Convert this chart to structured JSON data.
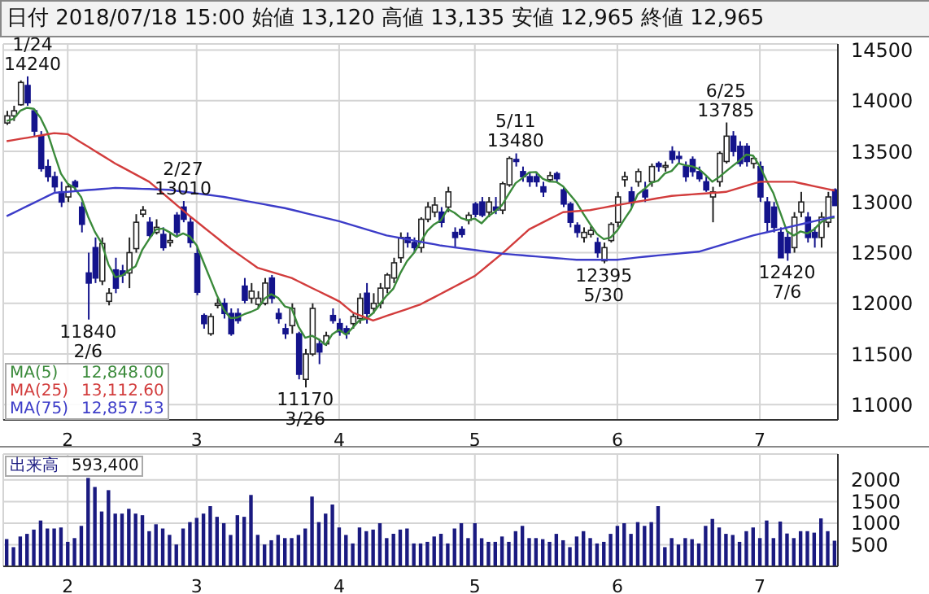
{
  "chart_data": [
    {
      "type": "candlestick",
      "title": "日付 2018/07/18 15:00 始値 13,120 高値 13,135 安値 12,965 終値 12,965",
      "categories": [
        null,
        null,
        null,
        null,
        null,
        null,
        null,
        null,
        null,
        "2",
        null,
        null,
        null,
        null,
        null,
        null,
        null,
        null,
        null,
        null,
        null,
        null,
        null,
        null,
        null,
        null,
        null,
        null,
        "3",
        null,
        null,
        null,
        null,
        null,
        null,
        null,
        null,
        null,
        null,
        null,
        null,
        null,
        null,
        null,
        null,
        null,
        null,
        null,
        null,
        "4",
        null,
        null,
        null,
        null,
        null,
        null,
        null,
        null,
        null,
        null,
        null,
        null,
        null,
        null,
        null,
        null,
        null,
        null,
        null,
        "5",
        null,
        null,
        null,
        null,
        null,
        null,
        null,
        null,
        null,
        null,
        null,
        null,
        null,
        null,
        null,
        null,
        null,
        null,
        null,
        null,
        "6",
        null,
        null,
        null,
        null,
        null,
        null,
        null,
        null,
        null,
        null,
        null,
        null,
        null,
        null,
        null,
        null,
        null,
        null,
        null,
        null,
        "7",
        null,
        null,
        null,
        null,
        null,
        null,
        null,
        null,
        null,
        null,
        null
      ],
      "series": [
        {
          "type": "candlestick",
          "colors": [
            "#ffffff",
            "#ffffff",
            "#ffffff",
            "#14148c",
            "#14148c",
            "#14148c",
            "#14148c",
            "#14148c",
            "#14148c",
            "#ffffff",
            "#14148c",
            "#14148c",
            "#14148c",
            "#14148c",
            "#ffffff",
            "#ffffff",
            "#14148c",
            "#14148c",
            "#ffffff",
            "#ffffff",
            "#ffffff",
            "#14148c",
            "#ffffff",
            "#14148c",
            "#ffffff",
            "#14148c",
            "#14148c",
            "#14148c",
            "#14148c",
            "#14148c",
            "#ffffff",
            "#ffffff",
            "#14148c",
            "#14148c",
            "#14148c",
            "#14148c",
            "#ffffff",
            "#ffffff",
            "#ffffff",
            "#14148c",
            "#14148c",
            "#14148c",
            "#ffffff",
            "#14148c",
            "#ffffff",
            "#ffffff",
            "#14148c",
            "#ffffff",
            "#14148c",
            "#14148c",
            "#14148c",
            "#ffffff",
            "#ffffff",
            "#14148c",
            "#ffffff",
            "#ffffff",
            "#ffffff",
            "#ffffff",
            "#ffffff",
            "#14148c",
            "#14148c",
            "#ffffff",
            "#ffffff",
            "#ffffff",
            "#14148c",
            "#ffffff",
            "#14148c",
            "#14148c",
            "#ffffff",
            "#14148c",
            "#14148c",
            "#ffffff",
            "#14148c",
            "#ffffff",
            "#ffffff",
            "#14148c",
            "#14148c",
            "#14148c",
            "#14148c",
            "#14148c",
            "#ffffff",
            "#14148c",
            "#14148c",
            "#14148c",
            "#14148c",
            "#ffffff",
            "#ffffff",
            "#14148c",
            "#ffffff",
            "#ffffff",
            "#ffffff",
            "#ffffff",
            "#14148c",
            "#ffffff",
            "#14148c",
            "#ffffff",
            "#14148c",
            "#ffffff",
            "#14148c",
            "#14148c",
            "#14148c",
            "#14148c",
            "#14148c",
            "#14148c",
            "#ffffff",
            "#ffffff",
            "#ffffff",
            "#14148c",
            "#14148c",
            "#14148c",
            "#ffffff",
            "#14148c",
            "#14148c",
            "#14148c",
            "#14148c",
            "#14148c",
            "#ffffff",
            "#ffffff",
            "#14148c",
            "#14148c",
            "#ffffff",
            "#ffffff",
            "#14148c"
          ],
          "ohlc": [
            [
              13780,
              13900,
              13760,
              13850
            ],
            [
              13850,
              13950,
              13800,
              13900
            ],
            [
              13960,
              14200,
              13950,
              14180
            ],
            [
              14150,
              14240,
              13950,
              13980
            ],
            [
              13900,
              13920,
              13650,
              13700
            ],
            [
              13650,
              13700,
              13300,
              13330
            ],
            [
              13350,
              13420,
              13200,
              13250
            ],
            [
              13250,
              13300,
              13100,
              13150
            ],
            [
              13100,
              13200,
              12950,
              13000
            ],
            [
              13050,
              13180,
              13000,
              13150
            ],
            [
              13200,
              13220,
              13100,
              13150
            ],
            [
              12950,
              13000,
              12700,
              12780
            ],
            [
              12300,
              12500,
              11840,
              12200
            ],
            [
              12550,
              12650,
              12200,
              12250
            ],
            [
              12220,
              12650,
              12180,
              12590
            ],
            [
              12020,
              12150,
              11980,
              12100
            ],
            [
              12330,
              12450,
              12100,
              12150
            ],
            [
              12320,
              12380,
              12200,
              12280
            ],
            [
              12300,
              12650,
              12150,
              12500
            ],
            [
              12540,
              12880,
              12500,
              12800
            ],
            [
              12880,
              12960,
              12850,
              12920
            ],
            [
              12800,
              12850,
              12650,
              12670
            ],
            [
              12700,
              12830,
              12680,
              12750
            ],
            [
              12680,
              12750,
              12520,
              12550
            ],
            [
              12600,
              12700,
              12560,
              12620
            ],
            [
              12870,
              12900,
              12650,
              12700
            ],
            [
              12950,
              13010,
              12800,
              12830
            ],
            [
              12800,
              12850,
              12550,
              12600
            ],
            [
              12490,
              12550,
              12080,
              12110
            ],
            [
              11880,
              11900,
              11750,
              11800
            ],
            [
              11700,
              11900,
              11680,
              11870
            ],
            [
              11980,
              12050,
              11950,
              12000
            ],
            [
              12000,
              12050,
              11850,
              11900
            ],
            [
              11900,
              11950,
              11680,
              11700
            ],
            [
              11900,
              11950,
              11800,
              11830
            ],
            [
              12170,
              12250,
              12000,
              12030
            ],
            [
              12050,
              12200,
              12000,
              12120
            ],
            [
              11990,
              12120,
              11950,
              12050
            ],
            [
              12000,
              12250,
              11980,
              12200
            ],
            [
              12250,
              12280,
              12000,
              12050
            ],
            [
              11900,
              11950,
              11800,
              11850
            ],
            [
              11750,
              11800,
              11650,
              11700
            ],
            [
              11780,
              12000,
              11700,
              11950
            ],
            [
              11700,
              11720,
              11250,
              11300
            ],
            [
              11250,
              11550,
              11170,
              11500
            ],
            [
              11500,
              12000,
              11480,
              11950
            ],
            [
              11600,
              11650,
              11400,
              11520
            ],
            [
              11600,
              11720,
              11580,
              11680
            ],
            [
              11880,
              11950,
              11800,
              11830
            ],
            [
              11800,
              11850,
              11680,
              11720
            ],
            [
              11750,
              11780,
              11650,
              11700
            ],
            [
              11800,
              11900,
              11750,
              11870
            ],
            [
              11850,
              12100,
              11800,
              12050
            ],
            [
              12100,
              12200,
              11800,
              11900
            ],
            [
              11950,
              12100,
              11900,
              12000
            ],
            [
              12000,
              12200,
              11950,
              12150
            ],
            [
              12150,
              12300,
              12100,
              12280
            ],
            [
              12250,
              12450,
              12200,
              12400
            ],
            [
              12450,
              12700,
              12400,
              12650
            ],
            [
              12650,
              12700,
              12550,
              12600
            ],
            [
              12600,
              12650,
              12500,
              12550
            ],
            [
              12550,
              12850,
              12500,
              12830
            ],
            [
              12830,
              13000,
              12800,
              12950
            ],
            [
              12900,
              13050,
              12850,
              12970
            ],
            [
              12900,
              12950,
              12750,
              12800
            ],
            [
              12950,
              13150,
              12900,
              13100
            ],
            [
              12700,
              12750,
              12550,
              12650
            ],
            [
              12730,
              12760,
              12650,
              12680
            ],
            [
              12820,
              12900,
              12780,
              12870
            ],
            [
              12980,
              13000,
              12850,
              12880
            ],
            [
              13000,
              13050,
              12850,
              12870
            ],
            [
              12900,
              13050,
              12850,
              13000
            ],
            [
              12950,
              13050,
              12880,
              12920
            ],
            [
              12920,
              13200,
              12880,
              13180
            ],
            [
              13170,
              13450,
              13150,
              13430
            ],
            [
              13420,
              13480,
              13350,
              13400
            ],
            [
              13300,
              13350,
              13200,
              13250
            ],
            [
              13250,
              13300,
              13150,
              13200
            ],
            [
              13250,
              13300,
              13150,
              13200
            ],
            [
              13150,
              13200,
              13050,
              13100
            ],
            [
              13220,
              13300,
              13200,
              13260
            ],
            [
              13280,
              13300,
              13200,
              13230
            ],
            [
              13120,
              13150,
              12950,
              12980
            ],
            [
              12980,
              13000,
              12750,
              12800
            ],
            [
              12770,
              12800,
              12650,
              12700
            ],
            [
              12650,
              12750,
              12600,
              12700
            ],
            [
              12680,
              12760,
              12650,
              12720
            ],
            [
              12600,
              12650,
              12450,
              12500
            ],
            [
              12420,
              12600,
              12395,
              12550
            ],
            [
              12620,
              12800,
              12600,
              12780
            ],
            [
              12800,
              13100,
              12750,
              13050
            ],
            [
              13220,
              13300,
              13150,
              13250
            ],
            [
              13100,
              13150,
              12950,
              13000
            ],
            [
              13200,
              13330,
              13150,
              13300
            ],
            [
              13120,
              13200,
              13000,
              13050
            ],
            [
              13200,
              13380,
              13150,
              13350
            ],
            [
              13380,
              13400,
              13300,
              13350
            ],
            [
              13350,
              13400,
              13300,
              13360
            ],
            [
              13500,
              13550,
              13380,
              13420
            ],
            [
              13450,
              13500,
              13380,
              13430
            ],
            [
              13350,
              13400,
              13200,
              13250
            ],
            [
              13420,
              13450,
              13250,
              13300
            ],
            [
              13300,
              13350,
              13200,
              13230
            ],
            [
              13200,
              13250,
              13100,
              13120
            ],
            [
              13050,
              13150,
              12800,
              13100
            ],
            [
              13200,
              13500,
              13150,
              13480
            ],
            [
              13400,
              13785,
              13380,
              13650
            ],
            [
              13650,
              13700,
              13450,
              13500
            ],
            [
              13550,
              13600,
              13350,
              13380
            ],
            [
              13550,
              13580,
              13350,
              13400
            ],
            [
              13380,
              13450,
              13330,
              13430
            ],
            [
              13350,
              13400,
              13000,
              13050
            ],
            [
              13000,
              13050,
              12700,
              12800
            ],
            [
              12950,
              13000,
              12700,
              12750
            ],
            [
              12700,
              12750,
              12450,
              12450
            ],
            [
              12650,
              12700,
              12420,
              12500
            ],
            [
              12550,
              12900,
              12500,
              12850
            ],
            [
              12900,
              13100,
              12850,
              13000
            ],
            [
              12850,
              12900,
              12600,
              12650
            ],
            [
              12700,
              12750,
              12550,
              12650
            ],
            [
              12650,
              12900,
              12550,
              12850
            ],
            [
              12800,
              13100,
              12750,
              13050
            ],
            [
              13120,
              13135,
              12965,
              12965
            ]
          ]
        },
        {
          "type": "line",
          "name": "MA(5)",
          "color": "#3a8a3a",
          "values": [
            13800,
            13820,
            13900,
            13930,
            13920,
            13830,
            13690,
            13480,
            13280,
            13180,
            13140,
            13046,
            12856,
            12706,
            12594,
            12384,
            12258,
            12274,
            12324,
            12366,
            12530,
            12634,
            12728,
            12738,
            12702,
            12658,
            12690,
            12660,
            12572,
            12408,
            12242,
            12076,
            11936,
            11854,
            11860,
            11892,
            11916,
            11946,
            12046,
            12090,
            12054,
            11970,
            11950,
            11770,
            11660,
            11680,
            11644,
            11590,
            11696,
            11740,
            11690,
            11760,
            11834,
            11848,
            11904,
            11994,
            12076,
            12146,
            12296,
            12416,
            12496,
            12606,
            12716,
            12780,
            12820,
            12930,
            12894,
            12840,
            12820,
            12836,
            12790,
            12860,
            12908,
            12970,
            13080,
            13186,
            13236,
            13292,
            13296,
            13230,
            13202,
            13198,
            13154,
            13074,
            12994,
            12882,
            12780,
            12684,
            12634,
            12650,
            12720,
            12826,
            12926,
            13076,
            13130,
            13190,
            13210,
            13282,
            13306,
            13382,
            13362,
            13352,
            13326,
            13266,
            13200,
            13246,
            13302,
            13356,
            13408,
            13468,
            13458,
            13352,
            13212,
            13086,
            12896,
            12710,
            12670,
            12710,
            12690,
            12730,
            12800,
            12840,
            12848
          ]
        },
        {
          "type": "line",
          "name": "MA(25)",
          "color": "#d23c3c",
          "values": [
            13600,
            13611,
            13623,
            13634,
            13646,
            13657,
            13669,
            13680,
            13675,
            13670,
            13629,
            13587,
            13546,
            13504,
            13463,
            13421,
            13380,
            13344,
            13308,
            13272,
            13236,
            13200,
            13143,
            13087,
            13030,
            12973,
            12917,
            12860,
            12807,
            12753,
            12700,
            12647,
            12593,
            12540,
            12493,
            12445,
            12398,
            12350,
            12330,
            12310,
            12290,
            12270,
            12250,
            12217,
            12184,
            12151,
            12119,
            12086,
            12053,
            12020,
            11965,
            11910,
            11883,
            11857,
            11830,
            11853,
            11876,
            11899,
            11921,
            11944,
            11967,
            11990,
            12025,
            12060,
            12095,
            12130,
            12165,
            12200,
            12235,
            12270,
            12325,
            12380,
            12435,
            12490,
            12550,
            12610,
            12670,
            12730,
            12764,
            12798,
            12832,
            12866,
            12900,
            12905,
            12910,
            12915,
            12920,
            12933,
            12945,
            12958,
            12970,
            12981,
            12993,
            13004,
            13015,
            13026,
            13038,
            13049,
            13060,
            13065,
            13070,
            13075,
            13080,
            13085,
            13090,
            13095,
            13100,
            13120,
            13140,
            13160,
            13180,
            13200,
            13200,
            13200,
            13200,
            13200,
            13200,
            13185,
            13171,
            13156,
            13142,
            13127,
            13112.6
          ]
        },
        {
          "type": "line",
          "name": "MA(75)",
          "color": "#3c3cc8",
          "values": [
            12860,
            12893,
            12926,
            12959,
            12991,
            13024,
            13057,
            13090,
            13096,
            13101,
            13107,
            13112,
            13118,
            13123,
            13129,
            13134,
            13140,
            13138,
            13135,
            13133,
            13130,
            13128,
            13125,
            13123,
            13120,
            13111,
            13103,
            13094,
            13085,
            13076,
            13068,
            13059,
            13050,
            13038,
            13026,
            13013,
            13001,
            12989,
            12977,
            12964,
            12952,
            12940,
            12924,
            12908,
            12891,
            12875,
            12859,
            12843,
            12826,
            12810,
            12790,
            12770,
            12750,
            12730,
            12710,
            12690,
            12670,
            12658,
            12645,
            12633,
            12620,
            12608,
            12595,
            12583,
            12570,
            12561,
            12552,
            12543,
            12534,
            12526,
            12517,
            12508,
            12499,
            12490,
            12485,
            12479,
            12474,
            12468,
            12463,
            12457,
            12452,
            12446,
            12441,
            12435,
            12430,
            12430,
            12430,
            12430,
            12430,
            12430,
            12430,
            12438,
            12445,
            12453,
            12460,
            12466,
            12473,
            12479,
            12485,
            12491,
            12498,
            12504,
            12510,
            12530,
            12550,
            12570,
            12590,
            12610,
            12630,
            12650,
            12670,
            12686,
            12701,
            12717,
            12732,
            12748,
            12764,
            12779,
            12795,
            12811,
            12826,
            12842,
            12857.53
          ]
        }
      ],
      "ylim": [
        10850,
        14560
      ],
      "yticks": [
        11000,
        11500,
        12000,
        12500,
        13000,
        13500,
        14000,
        14500
      ],
      "grid": true,
      "legend": "bottom left",
      "annotations": [
        "12,848.00",
        "13,112.60",
        "12,857.53",
        {
          "text": "1/24 14240",
          "y": 14240
        },
        {
          "text": "11840 2/6",
          "y": 11840
        },
        {
          "text": "2/27 13010",
          "y": 13010
        },
        {
          "text": "11170 3/26",
          "y": 11170
        },
        {
          "text": "5/11 13480",
          "y": 13480
        },
        {
          "text": "12395 5/30",
          "y": 12395
        },
        {
          "text": "6/25 13785",
          "y": 13785
        },
        {
          "text": "12420 7/6",
          "y": 12420
        }
      ]
    },
    {
      "type": "bar",
      "categories": [
        null,
        null,
        null,
        null,
        null,
        null,
        null,
        null,
        null,
        "2",
        null,
        null,
        null,
        null,
        null,
        null,
        null,
        null,
        null,
        null,
        null,
        null,
        null,
        null,
        null,
        null,
        null,
        null,
        "3",
        null,
        null,
        null,
        null,
        null,
        null,
        null,
        null,
        null,
        null,
        null,
        null,
        null,
        null,
        null,
        null,
        null,
        null,
        null,
        null,
        "4",
        null,
        null,
        null,
        null,
        null,
        null,
        null,
        null,
        null,
        null,
        null,
        null,
        null,
        null,
        null,
        null,
        null,
        null,
        null,
        "5",
        null,
        null,
        null,
        null,
        null,
        null,
        null,
        null,
        null,
        null,
        null,
        null,
        null,
        null,
        null,
        null,
        null,
        null,
        null,
        null,
        "6",
        null,
        null,
        null,
        null,
        null,
        null,
        null,
        null,
        null,
        null,
        null,
        null,
        null,
        null,
        null,
        null,
        null,
        null,
        null,
        null,
        "7",
        null,
        null,
        null,
        null,
        null,
        null,
        null,
        null,
        null,
        null,
        null
      ],
      "series": [
        {
          "name": "出来高",
          "color": "#1a1a80",
          "values": [
            629,
            444,
            691,
            752,
            851,
            1061,
            876,
            876,
            900,
            567,
            654,
            937,
            2047,
            1838,
            1270,
            1764,
            1221,
            1221,
            1332,
            1221,
            1184,
            814,
            974,
            876,
            729,
            506,
            876,
            1024,
            1122,
            1221,
            1394,
            1147,
            1000,
            727,
            1184,
            1147,
            1653,
            729,
            506,
            604,
            729,
            654,
            654,
            727,
            876,
            1616,
            1024,
            1221,
            1431,
            900,
            727,
            530,
            900,
            814,
            851,
            999,
            654,
            754,
            851,
            876,
            530,
            530,
            567,
            691,
            754,
            530,
            876,
            999,
            654,
            999,
            651,
            567,
            567,
            691,
            567,
            814,
            937,
            654,
            654,
            629,
            567,
            752,
            604,
            444,
            691,
            814,
            654,
            530,
            567,
            752,
            937,
            999,
            752,
            1024,
            937,
            1024,
            1394,
            444,
            654,
            506,
            654,
            629,
            530,
            937,
            1098,
            900,
            752,
            727,
            567,
            814,
            900,
            654,
            1061,
            654,
            1037,
            760,
            654,
            814,
            814,
            780,
            1110,
            814,
            593.4
          ]
        }
      ],
      "ylim": [
        0,
        2600
      ],
      "yticks": [
        500,
        1000,
        1500,
        2000
      ],
      "grid": true,
      "legend": "top left",
      "annotations": [
        "593,400"
      ]
    }
  ]
}
